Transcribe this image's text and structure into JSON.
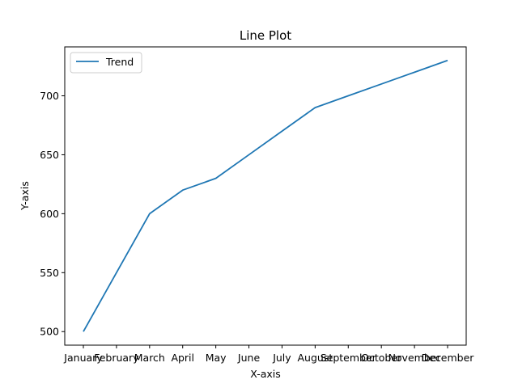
{
  "chart_data": {
    "type": "line",
    "title": "Line Plot",
    "xlabel": "X-axis",
    "ylabel": "Y-axis",
    "categories": [
      "January",
      "February",
      "March",
      "April",
      "May",
      "June",
      "July",
      "August",
      "September",
      "October",
      "November",
      "December"
    ],
    "series": [
      {
        "name": "Trend",
        "color": "#1f77b4",
        "values": [
          500,
          550,
          600,
          620,
          630,
          650,
          670,
          690,
          700,
          710,
          720,
          730
        ]
      }
    ],
    "ylim": [
      488.5,
      741.5
    ],
    "yticks": [
      500,
      550,
      600,
      650,
      700
    ],
    "grid": false,
    "legend_position": "upper-left"
  }
}
